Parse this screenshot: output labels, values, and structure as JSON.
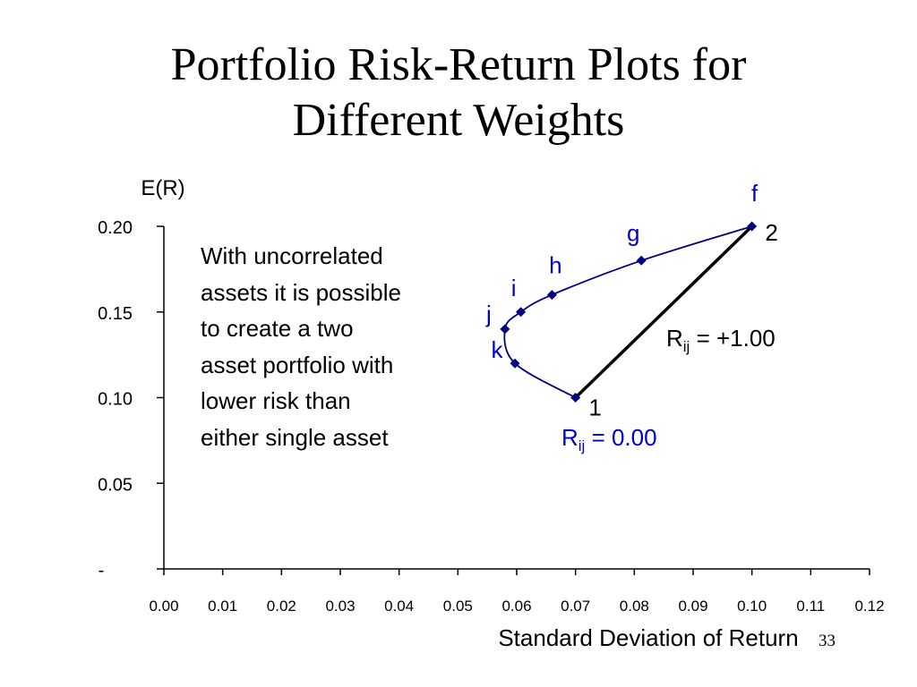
{
  "slide": {
    "title_lines": [
      "Portfolio Risk-Return Plots for",
      "Different Weights"
    ],
    "note_lines": [
      "With uncorrelated",
      "assets it is possible",
      "to create a two",
      "asset portfolio with",
      "lower risk than",
      "either single asset"
    ],
    "page_number": "33"
  },
  "colors": {
    "curve": "#000080",
    "straight_line": "#000000",
    "accent_text": "#0000cc"
  },
  "chart_data": {
    "type": "line",
    "ylabel": "E(R)",
    "xlabel": "Standard Deviation of Return",
    "xlim": [
      0,
      0.12
    ],
    "ylim": [
      0,
      0.2
    ],
    "xticks": [
      "0.00",
      "0.01",
      "0.02",
      "0.03",
      "0.04",
      "0.05",
      "0.06",
      "0.07",
      "0.08",
      "0.09",
      "0.10",
      "0.11",
      "0.12"
    ],
    "yticks": [
      "-",
      "0.05",
      "0.10",
      "0.15",
      "0.20"
    ],
    "grid": false,
    "series": [
      {
        "name": "Rij = 0.00",
        "label_main": "R",
        "label_sub": "ij",
        "label_rest": " = 0.00",
        "color": "#000080",
        "points": [
          {
            "x": 0.07,
            "y": 0.1,
            "label": "1"
          },
          {
            "x": 0.0597,
            "y": 0.12,
            "label": "k"
          },
          {
            "x": 0.058,
            "y": 0.14,
            "label": "j"
          },
          {
            "x": 0.0607,
            "y": 0.15,
            "label": "i"
          },
          {
            "x": 0.066,
            "y": 0.16,
            "label": "h"
          },
          {
            "x": 0.0812,
            "y": 0.18,
            "label": "g"
          },
          {
            "x": 0.1,
            "y": 0.2,
            "label": "f"
          }
        ]
      },
      {
        "name": "Rij = +1.00",
        "label_main": "R",
        "label_sub": "ij",
        "label_rest": " = +1.00",
        "color": "#000000",
        "points": [
          {
            "x": 0.07,
            "y": 0.1
          },
          {
            "x": 0.1,
            "y": 0.2,
            "label": "2"
          }
        ]
      }
    ]
  }
}
